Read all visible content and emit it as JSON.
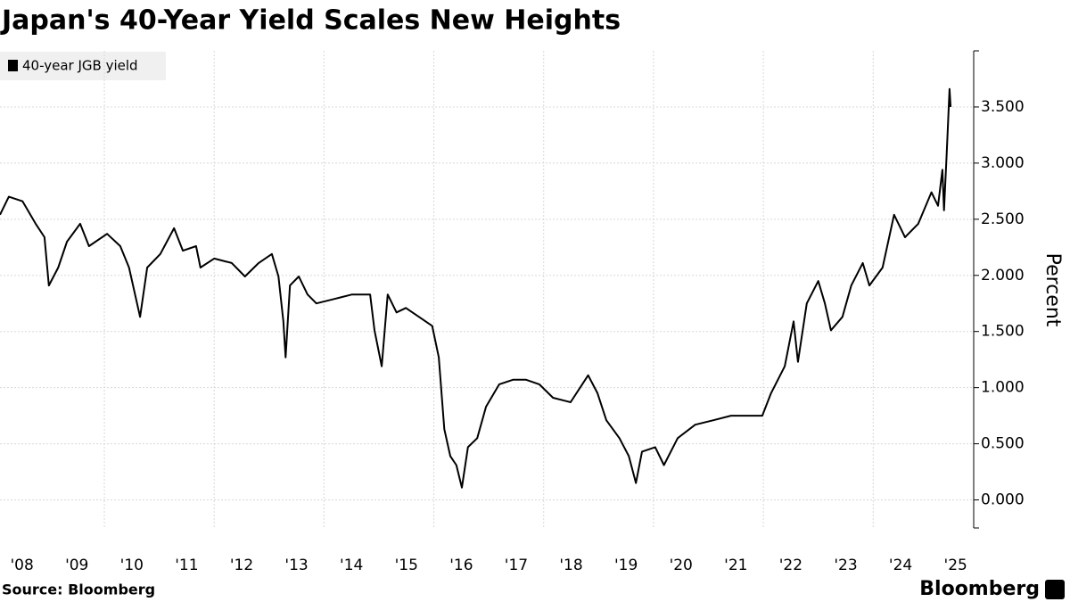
{
  "chart_data": {
    "type": "line",
    "title": "Japan's 40-Year Yield Scales New Heights",
    "y_label": "Percent",
    "source": "Source: Bloomberg",
    "brand": "Bloomberg",
    "legend": "top-left",
    "grid": true,
    "xlim": [
      2008.1,
      2025.83
    ],
    "ylim": [
      -0.25,
      4.0
    ],
    "xticks": [
      {
        "value": 2008.5,
        "label": "'08"
      },
      {
        "value": 2009.5,
        "label": "'09"
      },
      {
        "value": 2010.5,
        "label": "'10"
      },
      {
        "value": 2011.5,
        "label": "'11"
      },
      {
        "value": 2012.5,
        "label": "'12"
      },
      {
        "value": 2013.5,
        "label": "'13"
      },
      {
        "value": 2014.5,
        "label": "'14"
      },
      {
        "value": 2015.5,
        "label": "'15"
      },
      {
        "value": 2016.5,
        "label": "'16"
      },
      {
        "value": 2017.5,
        "label": "'17"
      },
      {
        "value": 2018.5,
        "label": "'18"
      },
      {
        "value": 2019.5,
        "label": "'19"
      },
      {
        "value": 2020.5,
        "label": "'20"
      },
      {
        "value": 2021.5,
        "label": "'21"
      },
      {
        "value": 2022.5,
        "label": "'22"
      },
      {
        "value": 2023.5,
        "label": "'23"
      },
      {
        "value": 2024.5,
        "label": "'24"
      },
      {
        "value": 2025.5,
        "label": "'25"
      }
    ],
    "xgrid": [
      2010,
      2012,
      2014,
      2016,
      2018,
      2020,
      2022,
      2024
    ],
    "yticks": [
      {
        "value": 0,
        "label": "0.000"
      },
      {
        "value": 0.5,
        "label": "0.500"
      },
      {
        "value": 1,
        "label": "1.000"
      },
      {
        "value": 1.5,
        "label": "1.500"
      },
      {
        "value": 2,
        "label": "2.000"
      },
      {
        "value": 2.5,
        "label": "2.500"
      },
      {
        "value": 3,
        "label": "3.000"
      },
      {
        "value": 3.5,
        "label": "3.500"
      }
    ],
    "x": [
      2008.1,
      2008.26,
      2008.51,
      2008.75,
      2008.91,
      2008.99,
      2009.16,
      2009.32,
      2009.56,
      2009.72,
      2010.05,
      2010.29,
      2010.45,
      2010.65,
      2010.78,
      2011.02,
      2011.27,
      2011.43,
      2011.67,
      2011.75,
      2012.0,
      2012.32,
      2012.56,
      2012.81,
      2013.05,
      2013.17,
      2013.26,
      2013.3,
      2013.38,
      2013.54,
      2013.7,
      2013.86,
      2014.19,
      2014.51,
      2014.84,
      2014.92,
      2015.05,
      2015.16,
      2015.32,
      2015.49,
      2015.73,
      2015.97,
      2016.09,
      2016.19,
      2016.3,
      2016.41,
      2016.51,
      2016.62,
      2016.79,
      2016.95,
      2017.19,
      2017.44,
      2017.68,
      2017.92,
      2018.17,
      2018.49,
      2018.81,
      2018.98,
      2019.14,
      2019.38,
      2019.55,
      2019.68,
      2019.79,
      2020.03,
      2020.19,
      2020.44,
      2020.76,
      2021.09,
      2021.41,
      2021.74,
      2021.98,
      2022.14,
      2022.39,
      2022.55,
      2022.63,
      2022.79,
      2023.0,
      2023.12,
      2023.23,
      2023.44,
      2023.6,
      2023.81,
      2023.93,
      2024.17,
      2024.38,
      2024.58,
      2024.82,
      2025.06,
      2025.18,
      2025.26,
      2025.29,
      2025.34,
      2025.39,
      2025.41
    ],
    "series": [
      {
        "name": "40-year JGB yield",
        "color": "#000000",
        "values": [
          2.54,
          2.7,
          2.66,
          2.46,
          2.34,
          1.91,
          2.07,
          2.3,
          2.46,
          2.26,
          2.37,
          2.26,
          2.07,
          1.63,
          2.07,
          2.19,
          2.42,
          2.22,
          2.26,
          2.07,
          2.15,
          2.11,
          1.99,
          2.11,
          2.19,
          1.99,
          1.59,
          1.27,
          1.91,
          1.99,
          1.83,
          1.75,
          1.79,
          1.83,
          1.83,
          1.51,
          1.19,
          1.83,
          1.67,
          1.71,
          1.63,
          1.55,
          1.27,
          0.63,
          0.39,
          0.31,
          0.11,
          0.47,
          0.55,
          0.83,
          1.03,
          1.07,
          1.07,
          1.03,
          0.91,
          0.87,
          1.11,
          0.95,
          0.71,
          0.55,
          0.39,
          0.15,
          0.43,
          0.47,
          0.31,
          0.55,
          0.67,
          0.71,
          0.75,
          0.75,
          0.75,
          0.95,
          1.19,
          1.59,
          1.23,
          1.75,
          1.95,
          1.75,
          1.51,
          1.63,
          1.91,
          2.11,
          1.91,
          2.07,
          2.54,
          2.34,
          2.46,
          2.74,
          2.62,
          2.94,
          2.58,
          3.1,
          3.66,
          3.5
        ]
      }
    ]
  }
}
